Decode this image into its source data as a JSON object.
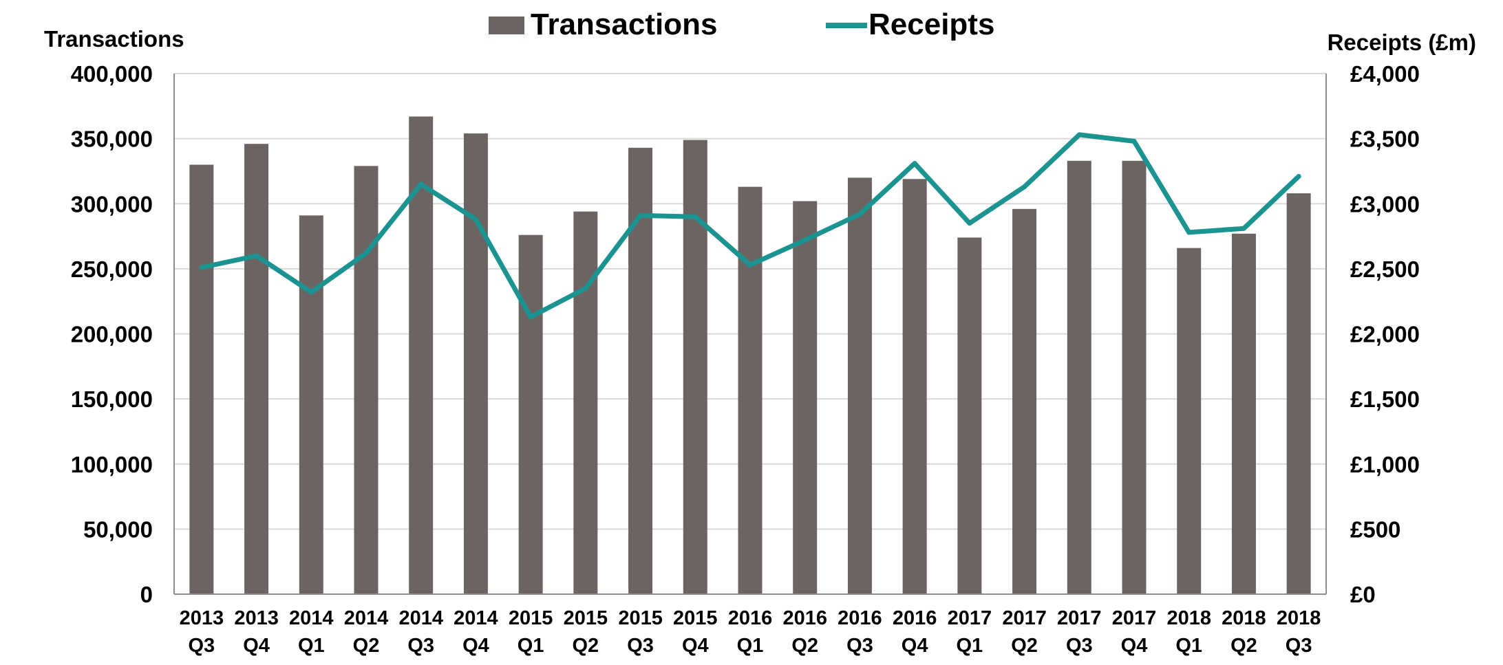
{
  "chart_data": {
    "type": "bar",
    "title": "",
    "legend": {
      "placement": "top-center",
      "entries": [
        "Transactions",
        "Receipts"
      ]
    },
    "grid": true,
    "y_left_label": "Transactions",
    "y_right_label": "Receipts (£m)",
    "ylim_left": [
      0,
      400000
    ],
    "ylim_right": [
      0,
      4000
    ],
    "y_left_ticks": [
      "0",
      "50,000",
      "100,000",
      "150,000",
      "200,000",
      "250,000",
      "300,000",
      "350,000",
      "400,000"
    ],
    "y_right_ticks": [
      "£0",
      "£500",
      "£1,000",
      "£1,500",
      "£2,000",
      "£2,500",
      "£3,000",
      "£3,500",
      "£4,000"
    ],
    "categories": [
      [
        "2013",
        "Q3"
      ],
      [
        "2013",
        "Q4"
      ],
      [
        "2014",
        "Q1"
      ],
      [
        "2014",
        "Q2"
      ],
      [
        "2014",
        "Q3"
      ],
      [
        "2014",
        "Q4"
      ],
      [
        "2015",
        "Q1"
      ],
      [
        "2015",
        "Q2"
      ],
      [
        "2015",
        "Q3"
      ],
      [
        "2015",
        "Q4"
      ],
      [
        "2016",
        "Q1"
      ],
      [
        "2016",
        "Q2"
      ],
      [
        "2016",
        "Q3"
      ],
      [
        "2016",
        "Q4"
      ],
      [
        "2017",
        "Q1"
      ],
      [
        "2017",
        "Q2"
      ],
      [
        "2017",
        "Q3"
      ],
      [
        "2017",
        "Q4"
      ],
      [
        "2018",
        "Q1"
      ],
      [
        "2018",
        "Q2"
      ],
      [
        "2018",
        "Q3"
      ]
    ],
    "series": [
      {
        "name": "Transactions",
        "type": "bar",
        "axis": "left",
        "color": "#6b6463",
        "values": [
          330000,
          346000,
          291000,
          329000,
          367000,
          354000,
          276000,
          294000,
          343000,
          349000,
          313000,
          302000,
          320000,
          319000,
          274000,
          296000,
          333000,
          333000,
          266000,
          277000,
          308000
        ]
      },
      {
        "name": "Receipts",
        "type": "line",
        "axis": "right",
        "color": "#1a9391",
        "values": [
          2510,
          2600,
          2320,
          2620,
          3150,
          2880,
          2130,
          2350,
          2910,
          2900,
          2530,
          2720,
          2920,
          3310,
          2850,
          3130,
          3530,
          3480,
          2780,
          2810,
          3210
        ]
      }
    ]
  }
}
